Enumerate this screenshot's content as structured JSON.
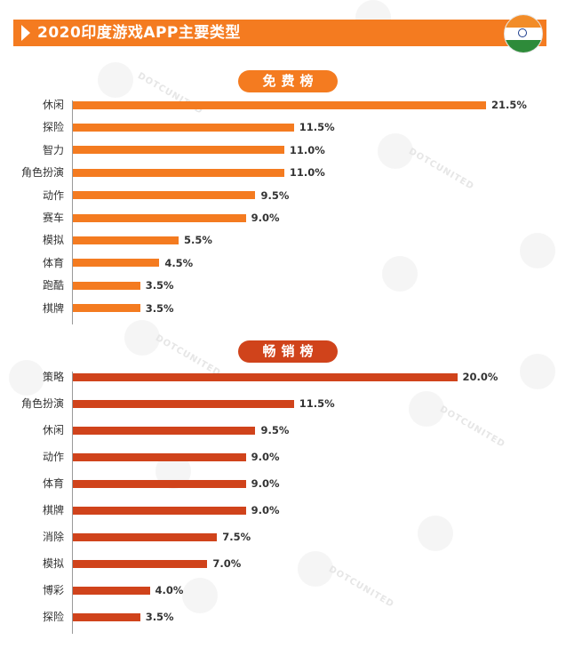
{
  "header": {
    "title": "2020印度游戏APP主要类型"
  },
  "colors": {
    "header": "#f47b20",
    "free_bar": "#f47b20",
    "grossing_bar": "#d0431b"
  },
  "icons": {
    "arrow": "triangle-right-icon",
    "flag": "india-flag-icon"
  },
  "watermark": {
    "text": "DOTCUNITED"
  },
  "chart_data": [
    {
      "type": "bar",
      "orientation": "horizontal",
      "title": "免费榜",
      "categories": [
        "休闲",
        "探险",
        "智力",
        "角色扮演",
        "动作",
        "赛车",
        "模拟",
        "体育",
        "跑酷",
        "棋牌"
      ],
      "values": [
        21.5,
        11.5,
        11.0,
        11.0,
        9.5,
        9.0,
        5.5,
        4.5,
        3.5,
        3.5
      ],
      "value_labels": [
        "21.5%",
        "11.5%",
        "11.0%",
        "11.0%",
        "9.5%",
        "9.0%",
        "5.5%",
        "4.5%",
        "3.5%",
        "3.5%"
      ],
      "unit": "%",
      "xlim": [
        0,
        21.5
      ],
      "grid": false
    },
    {
      "type": "bar",
      "orientation": "horizontal",
      "title": "畅销榜",
      "categories": [
        "策略",
        "角色扮演",
        "休闲",
        "动作",
        "体育",
        "棋牌",
        "消除",
        "模拟",
        "博彩",
        "探险"
      ],
      "values": [
        20.0,
        11.5,
        9.5,
        9.0,
        9.0,
        9.0,
        7.5,
        7.0,
        4.0,
        3.5
      ],
      "value_labels": [
        "20.0%",
        "11.5%",
        "9.5%",
        "9.0%",
        "9.0%",
        "9.0%",
        "7.5%",
        "7.0%",
        "4.0%",
        "3.5%"
      ],
      "unit": "%",
      "xlim": [
        0,
        21.5
      ],
      "grid": false
    }
  ]
}
